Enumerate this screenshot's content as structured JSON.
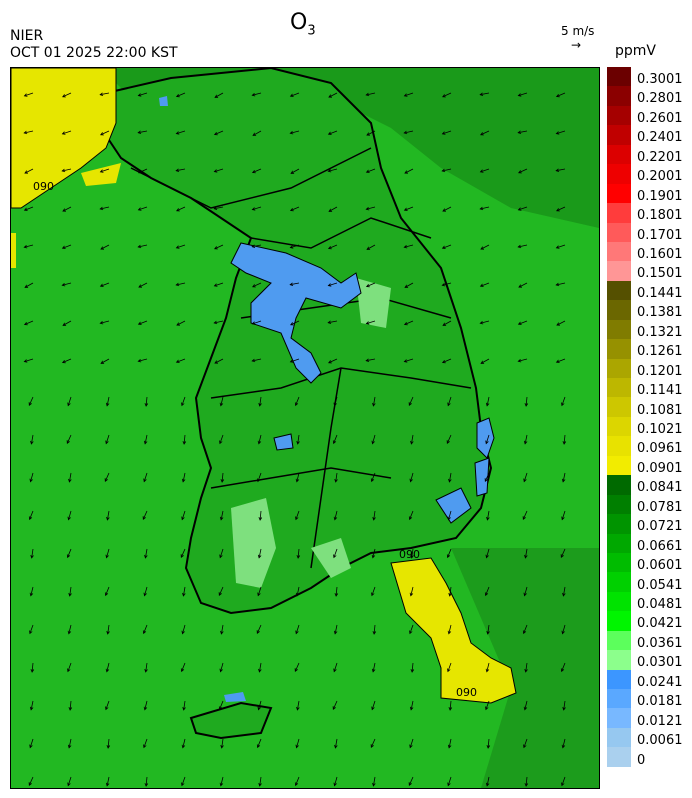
{
  "header": {
    "org": "NIER",
    "timestamp": "OCT 01 2025 22:00 KST",
    "title": "O",
    "title_subscript": "3",
    "wind_scale_label": "5 m/s",
    "wind_scale_arrow": "→",
    "unit": "ppmV"
  },
  "map": {
    "variable": "O3",
    "contour_label": "090",
    "base_color": "#1fc41f",
    "ocean_color": "#22b822",
    "land_color": "#1faa1f",
    "high_zone_color": "#e6e600",
    "low_zone_color": "#4f9bf0",
    "light_zone_color": "#7ee07e",
    "wind_arrow_icon": "wind-arrow-icon"
  },
  "legend": {
    "colors": [
      "#6b0000",
      "#8b0000",
      "#a50000",
      "#c00000",
      "#dc0000",
      "#ee0000",
      "#ff0000",
      "#ff3c3c",
      "#ff5a5a",
      "#ff7878",
      "#ff9696",
      "#555000",
      "#6b6700",
      "#807c00",
      "#969100",
      "#aba600",
      "#bdb700",
      "#cdc700",
      "#dcd600",
      "#e8e200",
      "#f2ec00",
      "#006a00",
      "#007f00",
      "#009400",
      "#00a800",
      "#00bc00",
      "#00d000",
      "#00e300",
      "#00f500",
      "#5cff5c",
      "#8cff8c",
      "#3c96ff",
      "#5aa8ff",
      "#78b8ff",
      "#96c8f0",
      "#aad0ee"
    ],
    "labels": [
      "0.3001",
      "0.2801",
      "0.2601",
      "0.2401",
      "0.2201",
      "0.2001",
      "0.1901",
      "0.1801",
      "0.1701",
      "0.1601",
      "0.1501",
      "0.1441",
      "0.1381",
      "0.1321",
      "0.1261",
      "0.1201",
      "0.1141",
      "0.1081",
      "0.1021",
      "0.0961",
      "0.0901",
      "0.0841",
      "0.0781",
      "0.0721",
      "0.0661",
      "0.0601",
      "0.0541",
      "0.0481",
      "0.0421",
      "0.0361",
      "0.0301",
      "0.0241",
      "0.0181",
      "0.0121",
      "0.0061",
      "0"
    ]
  }
}
